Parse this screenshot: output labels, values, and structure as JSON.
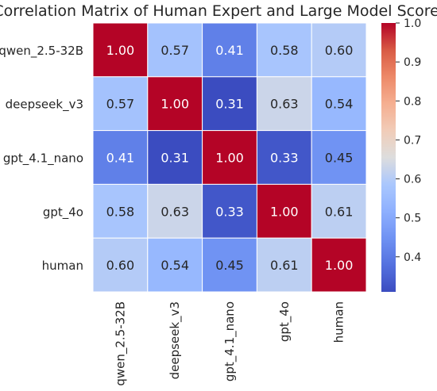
{
  "chart_data": {
    "type": "heatmap",
    "title": "Correlation Matrix of Human Expert and Large Model Scores",
    "rows": [
      "qwen_2.5-32B",
      "deepseek_v3",
      "gpt_4.1_nano",
      "gpt_4o",
      "human"
    ],
    "columns": [
      "qwen_2.5-32B",
      "deepseek_v3",
      "gpt_4.1_nano",
      "gpt_4o",
      "human"
    ],
    "values": [
      [
        1.0,
        0.57,
        0.41,
        0.58,
        0.6
      ],
      [
        0.57,
        1.0,
        0.31,
        0.63,
        0.54
      ],
      [
        0.41,
        0.31,
        1.0,
        0.33,
        0.45
      ],
      [
        0.58,
        0.63,
        0.33,
        1.0,
        0.61
      ],
      [
        0.6,
        0.54,
        0.45,
        0.61,
        1.0
      ]
    ],
    "colormap": "coolwarm",
    "color_range": [
      0.31,
      1.0
    ],
    "colorbar_ticks": [
      "0.4",
      "0.5",
      "0.6",
      "0.7",
      "0.8",
      "0.9",
      "1.0"
    ],
    "colorbar_tick_values": [
      0.4,
      0.5,
      0.6,
      0.7,
      0.8,
      0.9,
      1.0
    ],
    "xlabel": "",
    "ylabel": ""
  }
}
